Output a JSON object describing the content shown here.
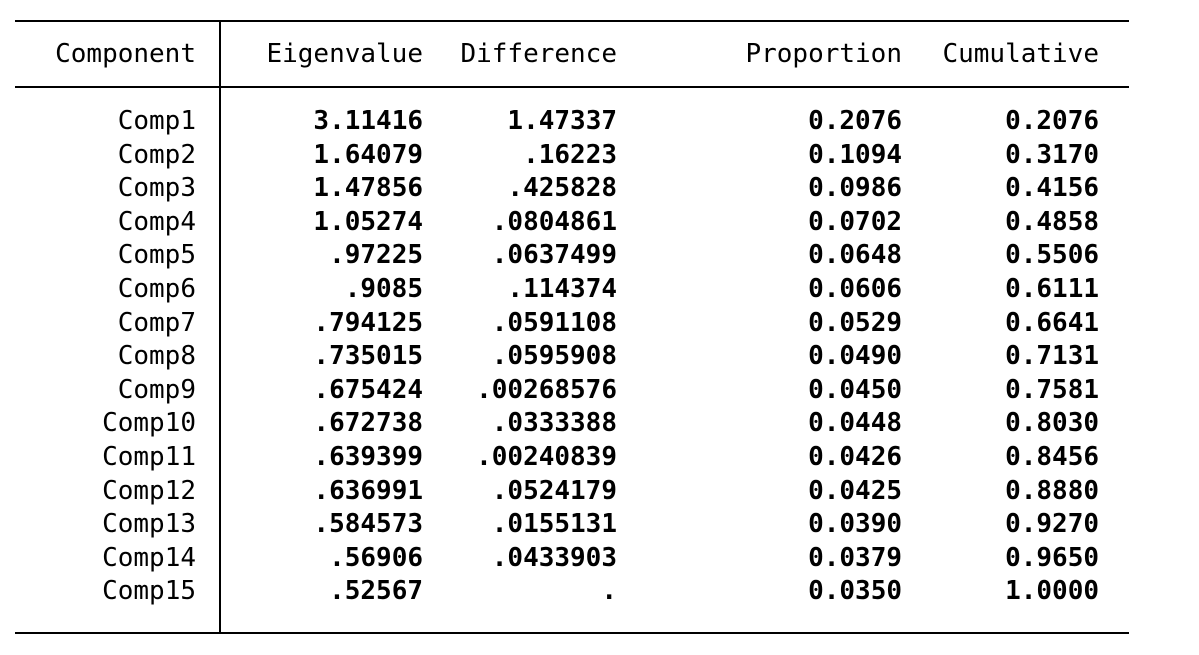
{
  "table": {
    "headers": [
      "Component",
      "Eigenvalue",
      "Difference",
      "Proportion",
      "Cumulative"
    ],
    "rows": [
      {
        "component": "Comp1",
        "eigenvalue": "3.11416",
        "difference": "1.47337",
        "proportion": "0.2076",
        "cumulative": "0.2076"
      },
      {
        "component": "Comp2",
        "eigenvalue": "1.64079",
        "difference": ".16223",
        "proportion": "0.1094",
        "cumulative": "0.3170"
      },
      {
        "component": "Comp3",
        "eigenvalue": "1.47856",
        "difference": ".425828",
        "proportion": "0.0986",
        "cumulative": "0.4156"
      },
      {
        "component": "Comp4",
        "eigenvalue": "1.05274",
        "difference": ".0804861",
        "proportion": "0.0702",
        "cumulative": "0.4858"
      },
      {
        "component": "Comp5",
        "eigenvalue": ".97225",
        "difference": ".0637499",
        "proportion": "0.0648",
        "cumulative": "0.5506"
      },
      {
        "component": "Comp6",
        "eigenvalue": ".9085",
        "difference": ".114374",
        "proportion": "0.0606",
        "cumulative": "0.6111"
      },
      {
        "component": "Comp7",
        "eigenvalue": ".794125",
        "difference": ".0591108",
        "proportion": "0.0529",
        "cumulative": "0.6641"
      },
      {
        "component": "Comp8",
        "eigenvalue": ".735015",
        "difference": ".0595908",
        "proportion": "0.0490",
        "cumulative": "0.7131"
      },
      {
        "component": "Comp9",
        "eigenvalue": ".675424",
        "difference": ".00268576",
        "proportion": "0.0450",
        "cumulative": "0.7581"
      },
      {
        "component": "Comp10",
        "eigenvalue": ".672738",
        "difference": ".0333388",
        "proportion": "0.0448",
        "cumulative": "0.8030"
      },
      {
        "component": "Comp11",
        "eigenvalue": ".639399",
        "difference": ".00240839",
        "proportion": "0.0426",
        "cumulative": "0.8456"
      },
      {
        "component": "Comp12",
        "eigenvalue": ".636991",
        "difference": ".0524179",
        "proportion": "0.0425",
        "cumulative": "0.8880"
      },
      {
        "component": "Comp13",
        "eigenvalue": ".584573",
        "difference": ".0155131",
        "proportion": "0.0390",
        "cumulative": "0.9270"
      },
      {
        "component": "Comp14",
        "eigenvalue": ".56906",
        "difference": ".0433903",
        "proportion": "0.0379",
        "cumulative": "0.9650"
      },
      {
        "component": "Comp15",
        "eigenvalue": ".52567",
        "difference": ".",
        "proportion": "0.0350",
        "cumulative": "1.0000"
      }
    ]
  },
  "colors": {
    "text": "#000000",
    "background": "#ffffff",
    "rule": "#000000"
  }
}
